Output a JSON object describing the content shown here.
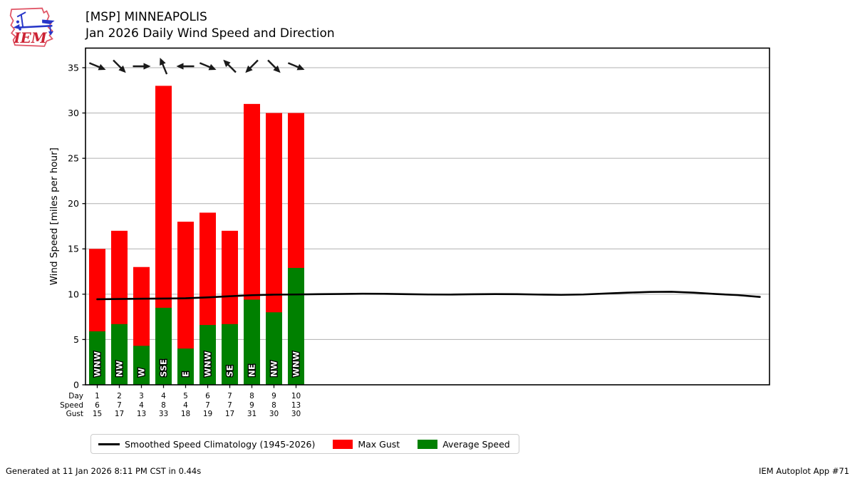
{
  "header": {
    "title_line1": "[MSP] MINNEAPOLIS",
    "title_line2": "Jan 2026 Daily Wind Speed and Direction",
    "logo_text": "IEM"
  },
  "chart_data": {
    "type": "bar",
    "title": "Jan 2026 Daily Wind Speed and Direction",
    "station": "[MSP] MINNEAPOLIS",
    "ylabel": "Wind Speed [miles per hour]",
    "ylim": [
      0,
      37.2
    ],
    "yticks": [
      0,
      5,
      10,
      15,
      20,
      25,
      30,
      35
    ],
    "grid": "horizontal",
    "days": [
      1,
      2,
      3,
      4,
      5,
      6,
      7,
      8,
      9,
      10
    ],
    "directions": [
      "WNW",
      "NW",
      "W",
      "SSE",
      "E",
      "WNW",
      "SE",
      "NE",
      "NW",
      "WNW"
    ],
    "series": [
      {
        "name": "Max Gust",
        "type": "bar",
        "color": "#ff0000",
        "values": [
          15,
          17,
          13,
          33,
          18,
          19,
          17,
          31,
          30,
          30
        ]
      },
      {
        "name": "Average Speed",
        "type": "bar",
        "color": "#008000",
        "values": [
          5.9,
          6.7,
          4.3,
          8.5,
          4.0,
          6.6,
          6.7,
          9.4,
          8.0,
          12.9
        ]
      },
      {
        "name": "Smoothed Speed Climatology (1945-2026)",
        "type": "line",
        "color": "#000000",
        "x": [
          1,
          2,
          3,
          4,
          5,
          6,
          7,
          8,
          9,
          10,
          11,
          12,
          13,
          14,
          15,
          16,
          17,
          18,
          19,
          20,
          21,
          22,
          23,
          24,
          25,
          26,
          27,
          28,
          29,
          30,
          31
        ],
        "values": [
          9.44,
          9.47,
          9.5,
          9.52,
          9.55,
          9.65,
          9.78,
          9.89,
          9.95,
          9.97,
          10.0,
          10.02,
          10.05,
          10.04,
          10.0,
          9.97,
          9.96,
          9.99,
          10.01,
          10.0,
          9.96,
          9.93,
          9.97,
          10.07,
          10.17,
          10.25,
          10.27,
          10.17,
          10.02,
          9.9,
          9.7
        ]
      }
    ],
    "table": {
      "rows": [
        {
          "label": "Day",
          "values": [
            "1",
            "2",
            "3",
            "4",
            "5",
            "6",
            "7",
            "8",
            "9",
            "10"
          ]
        },
        {
          "label": "Speed",
          "values": [
            "6",
            "7",
            "4",
            "8",
            "4",
            "7",
            "7",
            "9",
            "8",
            "13"
          ]
        },
        {
          "label": "Gust",
          "values": [
            "15",
            "17",
            "13",
            "33",
            "18",
            "19",
            "17",
            "31",
            "30",
            "30"
          ]
        }
      ]
    },
    "colors": {
      "gridline": "#b0b0b0",
      "bar_gust": "#ff0000",
      "bar_avg": "#008000",
      "line": "#000000"
    }
  },
  "legend": {
    "items": [
      {
        "label": "Smoothed Speed Climatology (1945-2026)",
        "swatch": "line",
        "color": "#000000"
      },
      {
        "label": "Max Gust",
        "swatch": "rect",
        "color": "#ff0000"
      },
      {
        "label": "Average Speed",
        "swatch": "rect",
        "color": "#008000"
      }
    ]
  },
  "footer": {
    "left": "Generated at 11 Jan 2026 8:11 PM CST in 0.44s",
    "right": "IEM Autoplot App #71"
  }
}
